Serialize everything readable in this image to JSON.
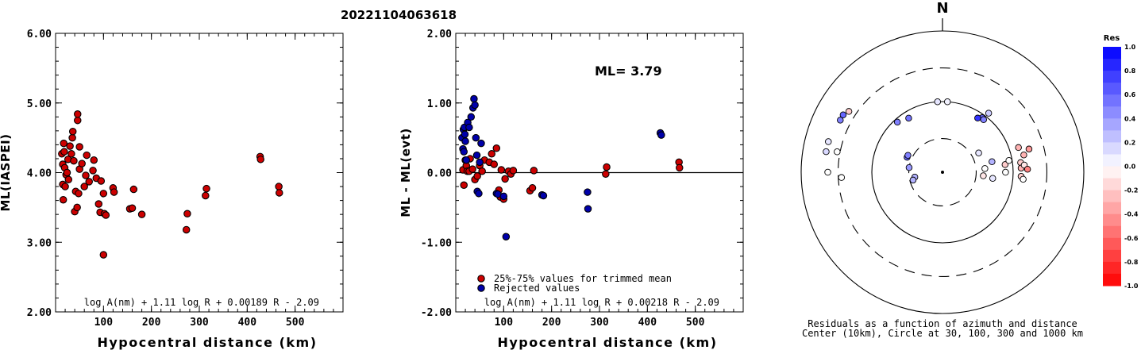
{
  "title": "20221104063618",
  "chart_data": [
    {
      "type": "scatter",
      "ylabel": "ML(IASPEI)",
      "xlabel": "Hypocentral distance (km)",
      "xlim": [
        0,
        600
      ],
      "ylim": [
        2.0,
        6.0
      ],
      "x_ticks": [
        100,
        200,
        300,
        400,
        500
      ],
      "y_ticks": [
        "2.00",
        "3.00",
        "4.00",
        "5.00",
        "6.00"
      ],
      "formula": "log A(nm) + 1.11 log R + 0.00189 R - 2.09",
      "series": [
        {
          "color": "#cc0000",
          "points": [
            [
              13,
              4.27
            ],
            [
              15,
              4.12
            ],
            [
              15,
              3.83
            ],
            [
              16,
              3.61
            ],
            [
              17,
              4.42
            ],
            [
              18,
              4.3
            ],
            [
              19,
              4.07
            ],
            [
              20,
              3.8
            ],
            [
              22,
              3.97
            ],
            [
              24,
              4.0
            ],
            [
              26,
              4.19
            ],
            [
              27,
              3.9
            ],
            [
              30,
              4.38
            ],
            [
              33,
              4.27
            ],
            [
              35,
              4.5
            ],
            [
              36,
              4.59
            ],
            [
              38,
              4.17
            ],
            [
              40,
              3.44
            ],
            [
              42,
              3.73
            ],
            [
              45,
              3.5
            ],
            [
              46,
              4.75
            ],
            [
              46,
              4.84
            ],
            [
              48,
              3.7
            ],
            [
              50,
              4.05
            ],
            [
              50,
              4.37
            ],
            [
              55,
              4.13
            ],
            [
              60,
              3.8
            ],
            [
              63,
              3.96
            ],
            [
              65,
              4.25
            ],
            [
              70,
              3.87
            ],
            [
              80,
              4.18
            ],
            [
              78,
              4.03
            ],
            [
              85,
              3.92
            ],
            [
              90,
              3.55
            ],
            [
              93,
              3.43
            ],
            [
              95,
              3.88
            ],
            [
              100,
              3.7
            ],
            [
              102,
              3.41
            ],
            [
              105,
              3.39
            ],
            [
              100,
              2.82
            ],
            [
              120,
              3.78
            ],
            [
              122,
              3.72
            ],
            [
              155,
              3.48
            ],
            [
              160,
              3.49
            ],
            [
              163,
              3.76
            ],
            [
              180,
              3.4
            ],
            [
              275,
              3.41
            ],
            [
              273,
              3.18
            ],
            [
              313,
              3.67
            ],
            [
              315,
              3.77
            ],
            [
              427,
              4.23
            ],
            [
              428,
              4.19
            ],
            [
              466,
              3.8
            ],
            [
              467,
              3.71
            ]
          ]
        }
      ]
    },
    {
      "type": "scatter",
      "ylabel": "ML - ML(evt)",
      "xlabel": "Hypocentral distance (km)",
      "xlim": [
        0,
        600
      ],
      "ylim": [
        -2.0,
        2.0
      ],
      "x_ticks": [
        100,
        200,
        300,
        400,
        500
      ],
      "y_ticks": [
        "-2.00",
        "-1.00",
        "0.00",
        "1.00",
        "2.00"
      ],
      "annotation": "ML= 3.79",
      "formula": "log A(nm) + 1.11 log R + 0.00218 R - 2.09",
      "legend": [
        {
          "label": "25%-75% values for trimmed mean",
          "color": "#cc0000"
        },
        {
          "label": "Rejected values",
          "color": "#0000aa"
        }
      ],
      "series": [
        {
          "name": "25%-75% values for trimmed mean",
          "color": "#cc0000",
          "points": [
            [
              15,
              0.04
            ],
            [
              17,
              -0.18
            ],
            [
              20,
              0.18
            ],
            [
              22,
              0.1
            ],
            [
              24,
              0.02
            ],
            [
              28,
              0.02
            ],
            [
              30,
              0.2
            ],
            [
              35,
              0.05
            ],
            [
              40,
              -0.1
            ],
            [
              45,
              -0.05
            ],
            [
              50,
              0.1
            ],
            [
              55,
              0.02
            ],
            [
              60,
              0.18
            ],
            [
              70,
              0.15
            ],
            [
              75,
              0.27
            ],
            [
              80,
              0.12
            ],
            [
              85,
              0.35
            ],
            [
              90,
              -0.25
            ],
            [
              93,
              -0.35
            ],
            [
              95,
              0.04
            ],
            [
              100,
              -0.38
            ],
            [
              103,
              -0.09
            ],
            [
              110,
              0.02
            ],
            [
              115,
              -0.02
            ],
            [
              120,
              0.03
            ],
            [
              155,
              -0.26
            ],
            [
              160,
              -0.22
            ],
            [
              163,
              0.03
            ],
            [
              313,
              -0.02
            ],
            [
              315,
              0.08
            ],
            [
              466,
              0.15
            ],
            [
              467,
              0.07
            ]
          ]
        },
        {
          "name": "Rejected values",
          "color": "#0000aa",
          "points": [
            [
              13,
              0.5
            ],
            [
              15,
              0.34
            ],
            [
              16,
              0.62
            ],
            [
              17,
              0.3
            ],
            [
              18,
              0.65
            ],
            [
              19,
              0.55
            ],
            [
              20,
              0.45
            ],
            [
              22,
              0.18
            ],
            [
              25,
              0.72
            ],
            [
              28,
              0.65
            ],
            [
              32,
              0.8
            ],
            [
              36,
              0.93
            ],
            [
              38,
              1.06
            ],
            [
              40,
              0.97
            ],
            [
              42,
              0.5
            ],
            [
              44,
              0.25
            ],
            [
              45,
              -0.27
            ],
            [
              48,
              -0.3
            ],
            [
              50,
              0.15
            ],
            [
              53,
              0.42
            ],
            [
              85,
              -0.3
            ],
            [
              88,
              -0.31
            ],
            [
              100,
              -0.34
            ],
            [
              105,
              -0.92
            ],
            [
              180,
              -0.32
            ],
            [
              183,
              -0.33
            ],
            [
              275,
              -0.28
            ],
            [
              276,
              -0.52
            ],
            [
              427,
              0.57
            ],
            [
              429,
              0.54
            ]
          ]
        }
      ]
    },
    {
      "type": "scatter",
      "subtype": "polar-residuals",
      "north_label": "N",
      "caption_line1": "Residuals as a function of azimuth and distance",
      "caption_line2": "Center (10km), Circle at 30, 100, 300 and 1000 km",
      "ring_distances_km": [
        30,
        100,
        300,
        1000
      ],
      "colorbar": {
        "title": "Res",
        "ticks": [
          "1.0",
          "0.8",
          "0.6",
          "0.4",
          "0.2",
          "0.0",
          "-0.2",
          "-0.4",
          "-0.6",
          "-0.8",
          "-1.0"
        ],
        "max_color": "#0000ff",
        "zero_color": "#ffffff",
        "min_color": "#ff0000"
      },
      "points": [
        {
          "azimuth_deg": 300,
          "distance_km": 420,
          "residual": 0.6
        },
        {
          "azimuth_deg": 297,
          "distance_km": 420,
          "residual": 0.5
        },
        {
          "azimuth_deg": 303,
          "distance_km": 380,
          "residual": -0.2
        },
        {
          "azimuth_deg": 285,
          "distance_km": 470,
          "residual": 0.1
        },
        {
          "azimuth_deg": 280,
          "distance_km": 470,
          "residual": 0.15
        },
        {
          "azimuth_deg": 281,
          "distance_km": 330,
          "residual": 0.0
        },
        {
          "azimuth_deg": 270,
          "distance_km": 420,
          "residual": 0.0
        },
        {
          "azimuth_deg": 267,
          "distance_km": 270,
          "residual": 0.0
        },
        {
          "azimuth_deg": 318,
          "distance_km": 90,
          "residual": 0.5
        },
        {
          "azimuth_deg": 328,
          "distance_km": 80,
          "residual": 0.55
        },
        {
          "azimuth_deg": 356,
          "distance_km": 100,
          "residual": 0.1
        },
        {
          "azimuth_deg": 4,
          "distance_km": 100,
          "residual": 0.05
        },
        {
          "azimuth_deg": 293,
          "distance_km": 35,
          "residual": 0.6
        },
        {
          "azimuth_deg": 296,
          "distance_km": 35,
          "residual": 0.5
        },
        {
          "azimuth_deg": 278,
          "distance_km": 30,
          "residual": 0.4
        },
        {
          "azimuth_deg": 260,
          "distance_km": 25,
          "residual": 0.3
        },
        {
          "azimuth_deg": 255,
          "distance_km": 27,
          "residual": 0.3
        },
        {
          "azimuth_deg": 36,
          "distance_km": 90,
          "residual": 0.6
        },
        {
          "azimuth_deg": 38,
          "distance_km": 88,
          "residual": 0.5
        },
        {
          "azimuth_deg": 33,
          "distance_km": 82,
          "residual": 0.8
        },
        {
          "azimuth_deg": 38,
          "distance_km": 115,
          "residual": 0.2
        },
        {
          "azimuth_deg": 62,
          "distance_km": 38,
          "residual": 0.1
        },
        {
          "azimuth_deg": 85,
          "distance_km": 40,
          "residual": 0.0
        },
        {
          "azimuth_deg": 95,
          "distance_km": 38,
          "residual": -0.1
        },
        {
          "azimuth_deg": 78,
          "distance_km": 52,
          "residual": 0.3
        },
        {
          "azimuth_deg": 97,
          "distance_km": 52,
          "residual": 0.1
        },
        {
          "azimuth_deg": 83,
          "distance_km": 78,
          "residual": -0.2
        },
        {
          "azimuth_deg": 90,
          "distance_km": 78,
          "residual": 0.0
        },
        {
          "azimuth_deg": 80,
          "distance_km": 90,
          "residual": 0.0
        },
        {
          "azimuth_deg": 72,
          "distance_km": 135,
          "residual": -0.3
        },
        {
          "azimuth_deg": 78,
          "distance_km": 150,
          "residual": -0.3
        },
        {
          "azimuth_deg": 75,
          "distance_km": 185,
          "residual": -0.4
        },
        {
          "azimuth_deg": 83,
          "distance_km": 130,
          "residual": -0.2
        },
        {
          "azimuth_deg": 87,
          "distance_km": 130,
          "residual": -0.3
        },
        {
          "azimuth_deg": 85,
          "distance_km": 145,
          "residual": -0.1
        },
        {
          "azimuth_deg": 88,
          "distance_km": 160,
          "residual": -0.5
        },
        {
          "azimuth_deg": 93,
          "distance_km": 130,
          "residual": -0.2
        },
        {
          "azimuth_deg": 95,
          "distance_km": 140,
          "residual": 0.0
        }
      ]
    }
  ]
}
